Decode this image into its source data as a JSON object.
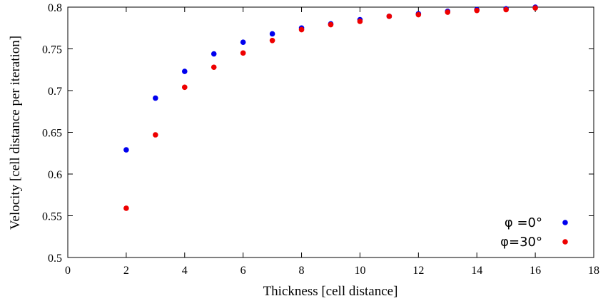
{
  "chart_data": {
    "type": "scatter",
    "title": "",
    "xlabel": "Thickness [cell distance]",
    "ylabel": "Velocity [cell distance per iteration]",
    "xlim": [
      0,
      18
    ],
    "ylim": [
      0.5,
      0.8
    ],
    "xticks": [
      "0",
      "2",
      "4",
      "6",
      "8",
      "10",
      "12",
      "14",
      "16",
      "18"
    ],
    "yticks": [
      "0.5",
      "0.55",
      "0.6",
      "0.65",
      "0.7",
      "0.75",
      "0.8"
    ],
    "grid": false,
    "legend_position": "bottom-right",
    "series": [
      {
        "name": "φ =0°",
        "color": "#0000ee",
        "x": [
          2,
          3,
          4,
          5,
          6,
          7,
          8,
          9,
          10,
          11,
          12,
          13,
          14,
          15,
          16
        ],
        "y": [
          0.629,
          0.691,
          0.723,
          0.744,
          0.758,
          0.768,
          0.775,
          0.78,
          0.785,
          0.789,
          0.792,
          0.795,
          0.797,
          0.798,
          0.8
        ]
      },
      {
        "name": "φ=30°",
        "color": "#ee0000",
        "x": [
          2,
          3,
          4,
          5,
          6,
          7,
          8,
          9,
          10,
          11,
          12,
          13,
          14,
          15,
          16
        ],
        "y": [
          0.559,
          0.647,
          0.704,
          0.728,
          0.745,
          0.76,
          0.773,
          0.779,
          0.783,
          0.789,
          0.791,
          0.794,
          0.796,
          0.797,
          0.799
        ]
      }
    ]
  }
}
